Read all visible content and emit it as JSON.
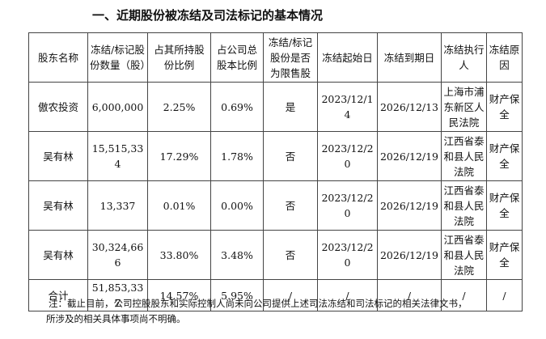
{
  "heading": "一、近期股份被冻结及司法标记的基本情况",
  "table": {
    "headers": [
      "股东名称",
      "冻结/标记股份数量（股）",
      "占其所持股份比例",
      "占公司总股本比例",
      "冻结/标记股份是否为限售股",
      "冻结起始日",
      "冻结到期日",
      "冻结执行人",
      "冻结原因"
    ],
    "rows": [
      [
        "傲农投资",
        "6,000,000",
        "2.25%",
        "0.69%",
        "是",
        "2023/12/14",
        "2026/12/13",
        "上海市浦东新区人民法院",
        "财产保全"
      ],
      [
        "吴有林",
        "15,515,334",
        "17.29%",
        "1.78%",
        "否",
        "2023/12/20",
        "2026/12/19",
        "江西省泰和县人民法院",
        "财产保全"
      ],
      [
        "吴有林",
        "13,337",
        "0.01%",
        "0.00%",
        "否",
        "2023/12/20",
        "2026/12/19",
        "江西省泰和县人民法院",
        "财产保全"
      ],
      [
        "吴有林",
        "30,324,666",
        "33.80%",
        "3.48%",
        "否",
        "2023/12/20",
        "2026/12/19",
        "江西省泰和县人民法院",
        "财产保全"
      ]
    ],
    "total": [
      "合计",
      "51,853,337",
      "14.57%",
      "5.95%",
      "/",
      "/",
      "/",
      "/",
      "/"
    ]
  },
  "note": {
    "line1": "注：截止目前，公司控股股东和实际控制人尚未向公司提供上述司法冻结和司法标记的相关法律文书，",
    "line2": "所涉及的相关具体事项尚不明确。"
  }
}
